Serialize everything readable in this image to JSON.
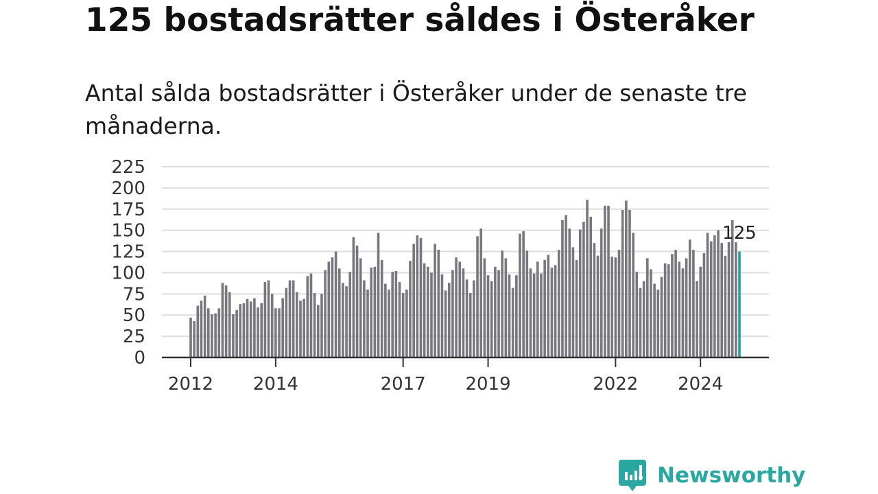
{
  "title": "125 bostadsrätter såldes i Österåker",
  "subtitle": "Antal sålda bostadsrätter i Österåker under de senaste tre månaderna.",
  "brand": {
    "name": "Newsworthy",
    "color": "#2aa7a0",
    "icon": "newsworthy-logo-icon"
  },
  "colors": {
    "bars": "#77777d",
    "highlight": "#1aa6a0",
    "grid": "#dddddd",
    "axis": "#333333"
  },
  "chart_data": {
    "type": "bar",
    "title": "",
    "xlabel": "",
    "ylabel": "",
    "ylim": [
      0,
      225
    ],
    "yticks": [
      0,
      25,
      50,
      75,
      100,
      125,
      150,
      175,
      200,
      225
    ],
    "xtick_labels": [
      "2012",
      "2014",
      "2017",
      "2019",
      "2022",
      "2024"
    ],
    "grid": true,
    "start_month": "2012-01",
    "end_month": "2024-12",
    "values": [
      47,
      43,
      61,
      67,
      73,
      58,
      51,
      52,
      58,
      88,
      85,
      77,
      51,
      56,
      63,
      64,
      69,
      66,
      70,
      59,
      64,
      89,
      91,
      75,
      58,
      58,
      70,
      82,
      91,
      91,
      77,
      67,
      69,
      96,
      99,
      76,
      62,
      75,
      103,
      113,
      118,
      125,
      105,
      88,
      84,
      101,
      142,
      132,
      117,
      91,
      80,
      106,
      107,
      147,
      115,
      87,
      80,
      101,
      102,
      89,
      76,
      80,
      114,
      134,
      144,
      141,
      111,
      107,
      100,
      134,
      127,
      98,
      79,
      88,
      103,
      118,
      113,
      105,
      92,
      76,
      91,
      143,
      152,
      117,
      97,
      90,
      107,
      103,
      126,
      117,
      98,
      82,
      97,
      146,
      149,
      126,
      105,
      99,
      113,
      99,
      115,
      121,
      106,
      109,
      127,
      162,
      168,
      152,
      130,
      115,
      151,
      160,
      186,
      166,
      135,
      120,
      152,
      179,
      179,
      119,
      118,
      127,
      174,
      185,
      174,
      147,
      101,
      82,
      90,
      117,
      104,
      87,
      80,
      95,
      111,
      110,
      122,
      127,
      113,
      105,
      117,
      139,
      127,
      90,
      107,
      123,
      147,
      137,
      144,
      150,
      135,
      120,
      136,
      162,
      136,
      125
    ],
    "highlight": {
      "month": "2024-12",
      "value": 125,
      "label": "125"
    }
  }
}
